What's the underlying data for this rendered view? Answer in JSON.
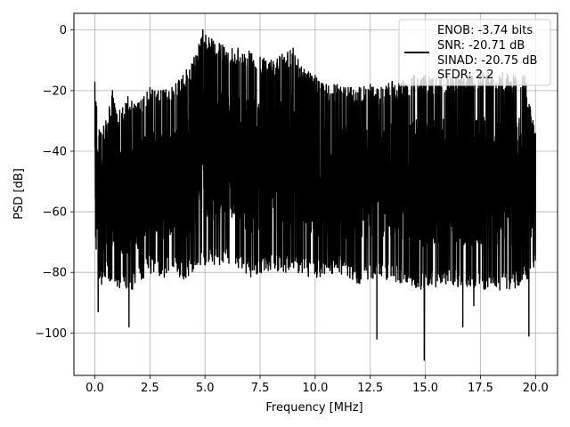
{
  "chart_data": {
    "type": "line",
    "title": "",
    "xlabel": "Frequency [MHz]",
    "ylabel": "PSD [dB]",
    "xlim": [
      -0.95,
      21.0
    ],
    "ylim": [
      -114,
      5.5
    ],
    "xticks": [
      0.0,
      2.5,
      5.0,
      7.5,
      10.0,
      12.5,
      15.0,
      17.5,
      20.0
    ],
    "xtick_labels": [
      "0.0",
      "2.5",
      "5.0",
      "7.5",
      "10.0",
      "12.5",
      "15.0",
      "17.5",
      "20.0"
    ],
    "yticks": [
      0,
      -20,
      -40,
      -60,
      -80,
      -100
    ],
    "ytick_labels": [
      "0",
      "−20",
      "−40",
      "−60",
      "−80",
      "−100"
    ],
    "grid": true,
    "legend_position": "top-right",
    "line_color": "#000000",
    "series": [
      {
        "x_range": [
          0.0,
          20.0
        ],
        "upper_envelope": [
          [
            0.0,
            -17
          ],
          [
            0.2,
            -33
          ],
          [
            0.5,
            -30
          ],
          [
            0.8,
            -20
          ],
          [
            1.0,
            -28
          ],
          [
            1.5,
            -22
          ],
          [
            2.0,
            -24
          ],
          [
            2.5,
            -19
          ],
          [
            3.0,
            -20
          ],
          [
            3.5,
            -19
          ],
          [
            4.0,
            -15
          ],
          [
            4.5,
            -9
          ],
          [
            4.9,
            0
          ],
          [
            5.3,
            -3
          ],
          [
            5.8,
            -5
          ],
          [
            6.5,
            -6
          ],
          [
            7.0,
            -7
          ],
          [
            7.5,
            -9
          ],
          [
            8.0,
            -10
          ],
          [
            8.5,
            -8
          ],
          [
            9.0,
            -6
          ],
          [
            9.5,
            -13
          ],
          [
            10.0,
            -15
          ],
          [
            10.5,
            -18
          ],
          [
            11.0,
            -18
          ],
          [
            11.5,
            -19
          ],
          [
            12.0,
            -19
          ],
          [
            12.5,
            -18
          ],
          [
            13.0,
            -19
          ],
          [
            13.5,
            -17
          ],
          [
            14.0,
            -17
          ],
          [
            14.5,
            -15
          ],
          [
            15.0,
            -15
          ],
          [
            15.5,
            -16
          ],
          [
            16.0,
            -15
          ],
          [
            16.5,
            -15
          ],
          [
            17.0,
            -14
          ],
          [
            17.5,
            -14
          ],
          [
            18.0,
            -14
          ],
          [
            18.5,
            -14
          ],
          [
            19.0,
            -15
          ],
          [
            19.5,
            -15
          ],
          [
            20.0,
            -34
          ]
        ],
        "lower_envelope": [
          [
            0.0,
            -70
          ],
          [
            0.2,
            -85
          ],
          [
            0.5,
            -82
          ],
          [
            1.0,
            -85
          ],
          [
            1.5,
            -87
          ],
          [
            2.0,
            -84
          ],
          [
            2.5,
            -80
          ],
          [
            3.0,
            -83
          ],
          [
            3.5,
            -79
          ],
          [
            4.0,
            -83
          ],
          [
            5.0,
            -78
          ],
          [
            6.0,
            -78
          ],
          [
            7.0,
            -82
          ],
          [
            8.0,
            -80
          ],
          [
            9.0,
            -80
          ],
          [
            10.0,
            -82
          ],
          [
            11.0,
            -80
          ],
          [
            12.0,
            -84
          ],
          [
            12.5,
            -82
          ],
          [
            13.0,
            -82
          ],
          [
            14.0,
            -84
          ],
          [
            15.0,
            -86
          ],
          [
            16.0,
            -84
          ],
          [
            17.0,
            -86
          ],
          [
            18.0,
            -86
          ],
          [
            19.0,
            -86
          ],
          [
            20.0,
            -80
          ]
        ],
        "notable_dips": [
          [
            0.15,
            -93
          ],
          [
            1.0,
            -93
          ],
          [
            1.55,
            -98
          ],
          [
            12.8,
            -102
          ],
          [
            13.0,
            -100
          ],
          [
            14.95,
            -109
          ],
          [
            16.7,
            -98
          ],
          [
            17.2,
            -91
          ],
          [
            19.7,
            -101
          ]
        ]
      }
    ],
    "legend": {
      "lines": [
        "ENOB: -3.74 bits",
        "SNR: -20.71 dB",
        "SINAD: -20.75 dB",
        "SFDR: 2.2"
      ]
    }
  }
}
